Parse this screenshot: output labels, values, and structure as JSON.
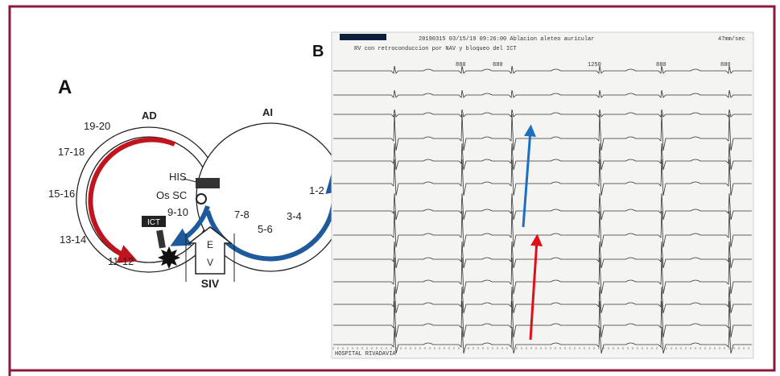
{
  "panel_a": {
    "label": "A",
    "left_atrium": "AD",
    "right_atrium": "AI",
    "segments": [
      "19-20",
      "17-18",
      "15-16",
      "13-14",
      "11-12",
      "9-10",
      "7-8",
      "5-6",
      "3-4",
      "1-2"
    ],
    "his": "HIS",
    "os_sc": "Os SC",
    "ict": "ICT",
    "arrow_top": "E",
    "arrow_bottom": "V",
    "siv": "SIV"
  },
  "panel_b": {
    "label": "B",
    "header": "20190315   03/15/19 09:26:00 Ablacion aleteo auricular",
    "speed": "47mm/sec",
    "subheader": "RV con retroconduccion por NAV y bloqueo del ICT",
    "intervals": [
      "880",
      "880",
      "1250",
      "880",
      "880"
    ],
    "footer": "HOSPITAL RIVADAVIA"
  }
}
